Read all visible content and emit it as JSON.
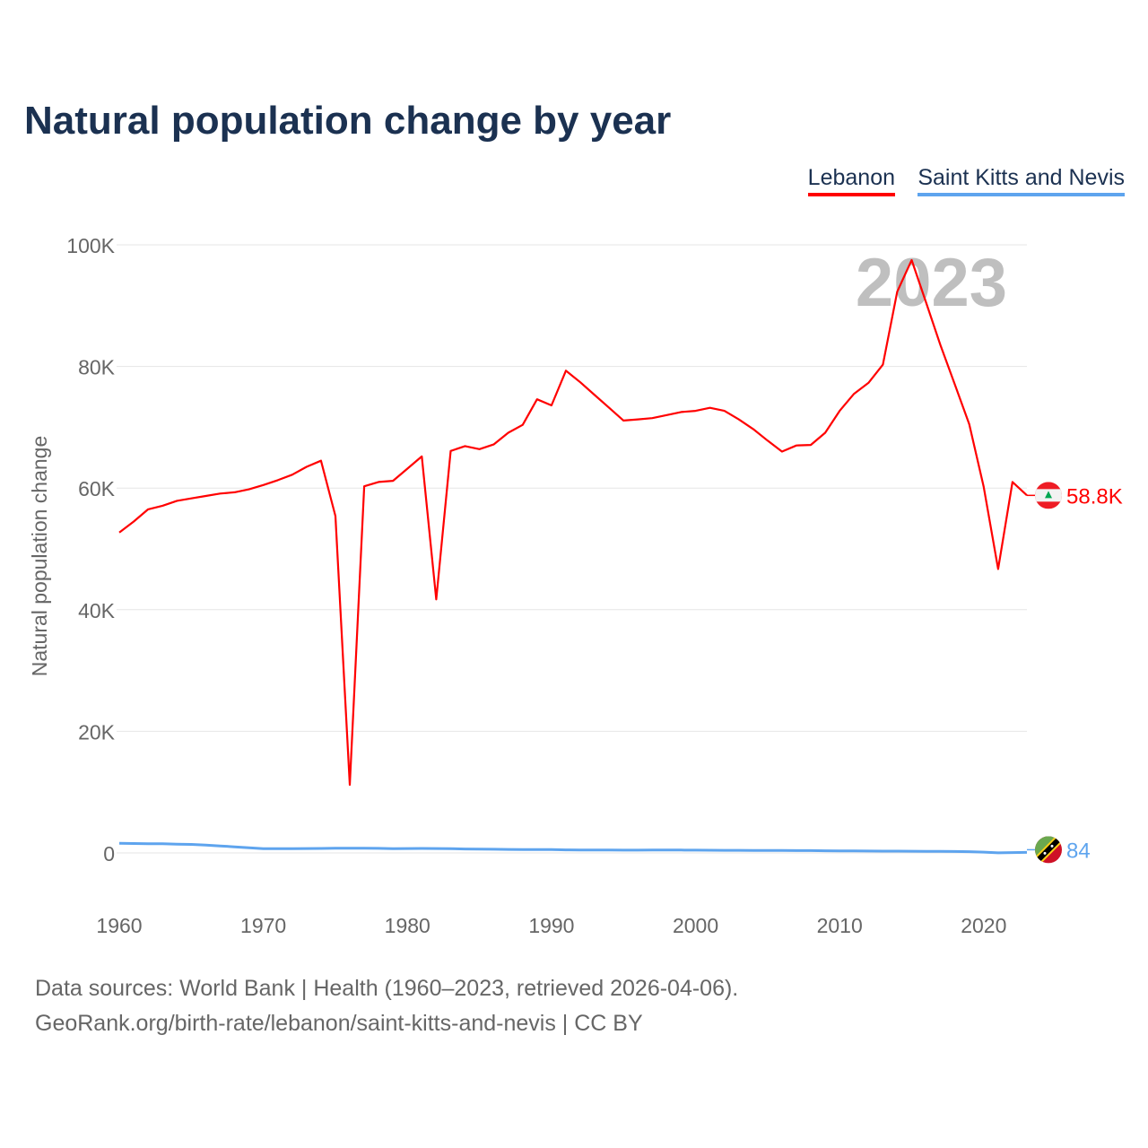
{
  "chart_data": {
    "type": "line",
    "title": "Natural population change by year",
    "xlabel": "",
    "ylabel": "Natural population change",
    "ylim": [
      -10000,
      100000
    ],
    "xlim": [
      1960,
      2023
    ],
    "grid": true,
    "legend_position": "top-right",
    "x_ticks": [
      "1960",
      "1970",
      "1980",
      "1990",
      "2000",
      "2010",
      "2020"
    ],
    "y_ticks": [
      {
        "v": 0,
        "label": "0"
      },
      {
        "v": 20000,
        "label": "20K"
      },
      {
        "v": 40000,
        "label": "40K"
      },
      {
        "v": 60000,
        "label": "60K"
      },
      {
        "v": 80000,
        "label": "80K"
      },
      {
        "v": 100000,
        "label": "100K"
      }
    ],
    "year_watermark": "2023",
    "x_start": 1960,
    "series": [
      {
        "name": "Lebanon",
        "color": "#ff0000",
        "end_label": "58.8K",
        "flag": "lebanon-flag-icon",
        "values": [
          52700,
          54500,
          56500,
          57100,
          57900,
          58300,
          58700,
          59100,
          59300,
          59800,
          60500,
          61300,
          62200,
          63500,
          64500,
          55400,
          11200,
          60300,
          61000,
          61200,
          63200,
          65200,
          41700,
          66100,
          66900,
          66400,
          67200,
          69100,
          70400,
          74600,
          73600,
          79300,
          77400,
          75300,
          73200,
          71100,
          71300,
          71500,
          72000,
          72500,
          72700,
          73200,
          72700,
          71300,
          69700,
          67800,
          66000,
          67000,
          67100,
          69100,
          72700,
          75500,
          77300,
          80300,
          92300,
          97500,
          90500,
          83500,
          77000,
          70500,
          60200,
          46700,
          61000,
          58800
        ]
      },
      {
        "name": "Saint Kitts and Nevis",
        "color": "#5ea4ee",
        "end_label": "84",
        "flag": "saint-kitts-and-nevis-flag-icon",
        "values": [
          1600,
          1550,
          1500,
          1500,
          1450,
          1400,
          1300,
          1150,
          1000,
          850,
          700,
          700,
          700,
          720,
          740,
          760,
          780,
          780,
          750,
          700,
          720,
          740,
          730,
          700,
          650,
          620,
          600,
          580,
          560,
          560,
          540,
          500,
          480,
          470,
          470,
          460,
          460,
          470,
          480,
          470,
          450,
          440,
          430,
          430,
          420,
          410,
          400,
          390,
          380,
          360,
          340,
          320,
          310,
          300,
          290,
          280,
          270,
          250,
          230,
          200,
          130,
          10,
          60,
          84
        ]
      }
    ]
  },
  "footer": {
    "line1": "Data sources: World Bank | Health (1960–2023, retrieved 2026-04-06).",
    "line2": "GeoRank.org/birth-rate/lebanon/saint-kitts-and-nevis | CC BY"
  }
}
